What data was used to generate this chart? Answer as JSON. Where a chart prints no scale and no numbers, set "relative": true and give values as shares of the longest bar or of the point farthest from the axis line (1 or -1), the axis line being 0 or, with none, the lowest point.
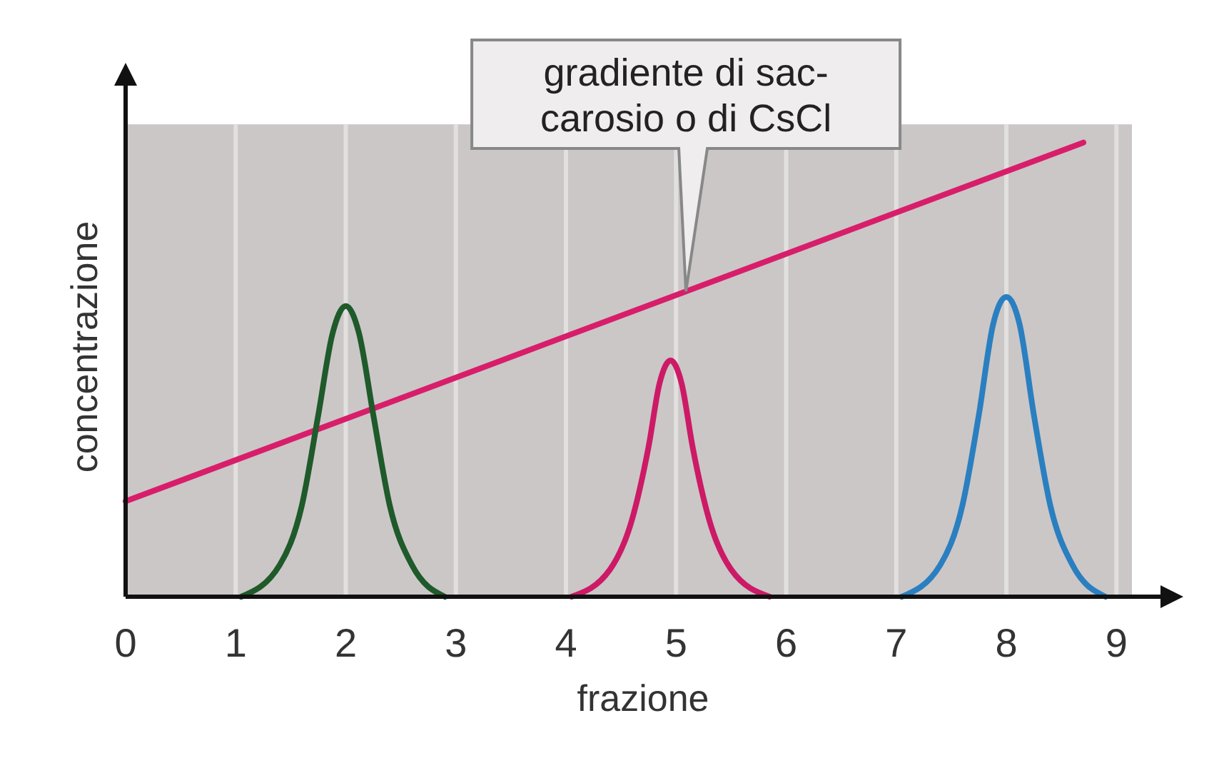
{
  "chart_data": {
    "type": "line",
    "relative": true,
    "xlabel": "frazione",
    "ylabel": "concentrazione",
    "xlim": [
      0,
      9.4
    ],
    "xticks": [
      0,
      1,
      2,
      3,
      4,
      5,
      6,
      7,
      8,
      9
    ],
    "grid": "x",
    "marker": "none",
    "line_style": "solid",
    "annotations": [
      "gradiente di sac-\ncarosio o di CsCl"
    ],
    "series": [
      {
        "color": "#d81e6a",
        "x": [
          0,
          8.7
        ],
        "values": [
          0.21,
          1
        ]
      },
      {
        "color": "#1f5a2a",
        "x": [
          1.05,
          1.4,
          1.6,
          1.75,
          1.88,
          2,
          2.12,
          2.25,
          2.4,
          2.6,
          2.9
        ],
        "values": [
          0,
          0.07,
          0.2,
          0.4,
          0.58,
          0.64,
          0.58,
          0.4,
          0.2,
          0.07,
          0
        ]
      },
      {
        "color": "#cc1a66",
        "x": [
          4.05,
          4.4,
          4.6,
          4.75,
          4.85,
          4.95,
          5.05,
          5.15,
          5.3,
          5.5,
          5.85
        ],
        "values": [
          0,
          0.06,
          0.17,
          0.33,
          0.47,
          0.52,
          0.47,
          0.33,
          0.17,
          0.06,
          0
        ]
      },
      {
        "color": "#2a7fc0",
        "x": [
          7.05,
          7.4,
          7.6,
          7.75,
          7.88,
          8,
          8.12,
          8.25,
          8.4,
          8.6,
          8.9
        ],
        "values": [
          0,
          0.07,
          0.2,
          0.4,
          0.6,
          0.66,
          0.6,
          0.4,
          0.2,
          0.07,
          0
        ]
      }
    ]
  }
}
